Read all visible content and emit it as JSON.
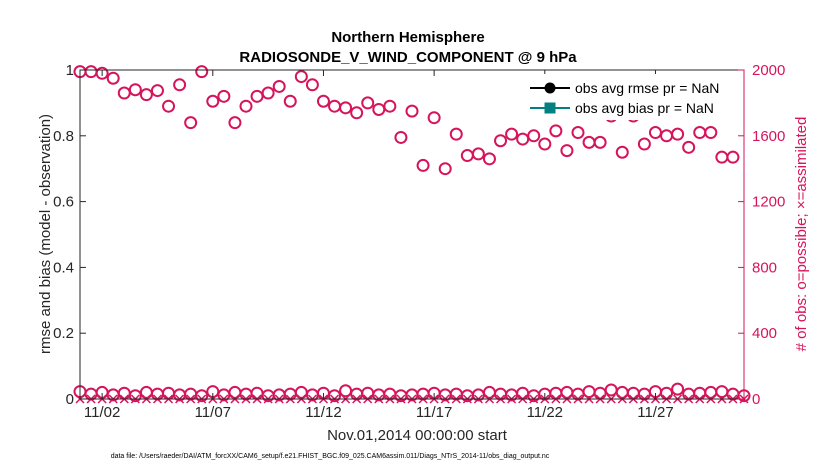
{
  "chart_data": {
    "type": "scatter",
    "title": "Northern Hemisphere",
    "subtitle": "RADIOSONDE_V_WIND_COMPONENT @ 9 hPa",
    "xlabel": "Nov.01,2014 00:00:00 start",
    "ylabel_left": "rmse and bias (model - observation)",
    "ylabel_right": "# of obs: o=possible; ×=assimilated",
    "footnote": "data file: /Users/raeder/DAI/ATM_forcXX/CAM6_setup/f.e21.FHIST_BGC.f09_025.CAM6assim.011/Diags_NTrS_2014-11/obs_diag_output.nc",
    "x_tick_labels": [
      "11/02",
      "11/07",
      "11/12",
      "11/17",
      "11/22",
      "11/27"
    ],
    "x_tick_days": [
      2,
      7,
      12,
      17,
      22,
      27
    ],
    "xlim_days": [
      1,
      31
    ],
    "ylim_left": [
      0,
      1
    ],
    "y_ticks_left": [
      "0",
      "0.2",
      "0.4",
      "0.6",
      "0.8",
      "1"
    ],
    "ylim_right": [
      0,
      2000
    ],
    "y_ticks_right": [
      "0",
      "400",
      "800",
      "1200",
      "1600",
      "2000"
    ],
    "grid": false,
    "legend_position": "top-right",
    "legend": [
      {
        "label": "obs avg rmse pr = NaN",
        "color": "#000000",
        "marker": "circle"
      },
      {
        "label": "obs avg bias pr = NaN",
        "color": "#008080",
        "marker": "square"
      }
    ],
    "colors": {
      "obs_count": "#d6145c",
      "rmse": "#000000",
      "bias": "#008080",
      "axis_left": "#262626"
    },
    "series": [
      {
        "name": "possible obs (upper)",
        "marker": "o",
        "color": "#d6145c",
        "x": [
          1.0,
          1.5,
          2.0,
          2.5,
          3.0,
          3.5,
          4.0,
          4.5,
          5.0,
          5.5,
          6.0,
          6.5,
          7.0,
          7.5,
          8.0,
          8.5,
          9.0,
          9.5,
          10.0,
          10.5,
          11.0,
          11.5,
          12.0,
          12.5,
          13.0,
          13.5,
          14.0,
          14.5,
          15.0,
          15.5,
          16.0,
          16.5,
          17.0,
          17.5,
          18.0,
          18.5,
          19.0,
          19.5,
          20.0,
          20.5,
          21.0,
          21.5,
          22.0,
          22.5,
          23.0,
          23.5,
          24.0,
          24.5,
          25.0,
          25.5,
          26.0,
          26.5,
          27.0,
          27.5,
          28.0,
          28.5,
          29.0,
          29.5,
          30.0,
          30.5
        ],
        "values": [
          1990,
          1990,
          1980,
          1950,
          1860,
          1880,
          1850,
          1875,
          1780,
          1910,
          1680,
          1990,
          1810,
          1840,
          1680,
          1780,
          1840,
          1860,
          1900,
          1810,
          1960,
          1910,
          1810,
          1780,
          1770,
          1740,
          1800,
          1760,
          1780,
          1590,
          1750,
          1420,
          1710,
          1400,
          1610,
          1480,
          1490,
          1460,
          1570,
          1610,
          1580,
          1600,
          1550,
          1630,
          1510,
          1620,
          1560,
          1560,
          1720,
          1500,
          1720,
          1550,
          1620,
          1600,
          1610,
          1530,
          1620,
          1620,
          1470,
          1470
        ]
      },
      {
        "name": "possible obs (lower)",
        "marker": "o",
        "color": "#d6145c",
        "x": [
          1.0,
          1.5,
          2.0,
          2.5,
          3.0,
          3.5,
          4.0,
          4.5,
          5.0,
          5.5,
          6.0,
          6.5,
          7.0,
          7.5,
          8.0,
          8.5,
          9.0,
          9.5,
          10.0,
          10.5,
          11.0,
          11.5,
          12.0,
          12.5,
          13.0,
          13.5,
          14.0,
          14.5,
          15.0,
          15.5,
          16.0,
          16.5,
          17.0,
          17.5,
          18.0,
          18.5,
          19.0,
          19.5,
          20.0,
          20.5,
          21.0,
          21.5,
          22.0,
          22.5,
          23.0,
          23.5,
          24.0,
          24.5,
          25.0,
          25.5,
          26.0,
          26.5,
          27.0,
          27.5,
          28.0,
          28.5,
          29.0,
          29.5,
          30.0,
          30.5,
          31.0
        ],
        "values": [
          45,
          30,
          40,
          25,
          35,
          20,
          40,
          30,
          35,
          25,
          30,
          20,
          45,
          25,
          40,
          30,
          35,
          20,
          25,
          30,
          40,
          25,
          35,
          20,
          50,
          30,
          35,
          25,
          30,
          20,
          25,
          30,
          35,
          25,
          30,
          20,
          25,
          40,
          30,
          25,
          35,
          20,
          30,
          35,
          40,
          30,
          45,
          35,
          55,
          40,
          35,
          30,
          45,
          35,
          60,
          30,
          35,
          40,
          45,
          30,
          20
        ]
      },
      {
        "name": "assimilated obs",
        "marker": "x",
        "color": "#d6145c",
        "x": [
          1.0,
          1.5,
          2.0,
          2.5,
          3.0,
          3.5,
          4.0,
          4.5,
          5.0,
          5.5,
          6.0,
          6.5,
          7.0,
          7.5,
          8.0,
          8.5,
          9.0,
          9.5,
          10.0,
          10.5,
          11.0,
          11.5,
          12.0,
          12.5,
          13.0,
          13.5,
          14.0,
          14.5,
          15.0,
          15.5,
          16.0,
          16.5,
          17.0,
          17.5,
          18.0,
          18.5,
          19.0,
          19.5,
          20.0,
          20.5,
          21.0,
          21.5,
          22.0,
          22.5,
          23.0,
          23.5,
          24.0,
          24.5,
          25.0,
          25.5,
          26.0,
          26.5,
          27.0,
          27.5,
          28.0,
          28.5,
          29.0,
          29.5,
          30.0,
          30.5,
          31.0
        ],
        "values": [
          0,
          0,
          0,
          0,
          0,
          0,
          0,
          0,
          0,
          0,
          0,
          0,
          0,
          0,
          0,
          0,
          0,
          0,
          0,
          0,
          0,
          0,
          0,
          0,
          0,
          0,
          0,
          0,
          0,
          0,
          0,
          0,
          0,
          0,
          0,
          0,
          0,
          0,
          0,
          0,
          0,
          0,
          0,
          0,
          0,
          0,
          0,
          0,
          0,
          0,
          0,
          0,
          0,
          0,
          0,
          0,
          0,
          0,
          0,
          0,
          0
        ]
      }
    ]
  }
}
